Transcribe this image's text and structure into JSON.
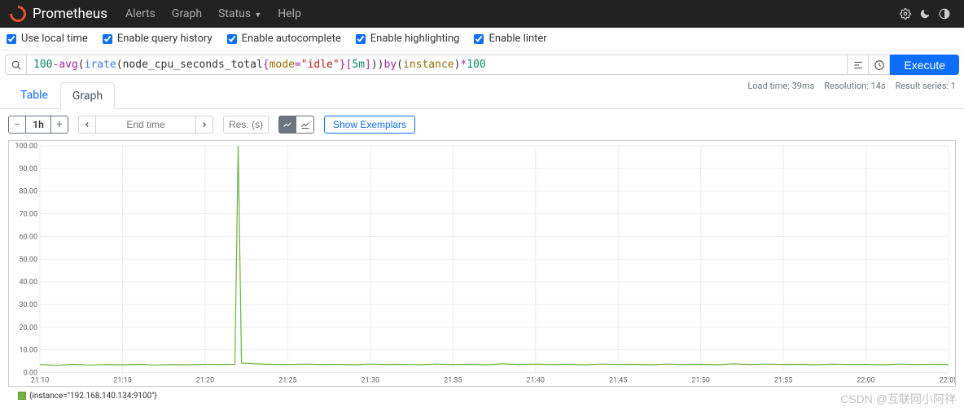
{
  "navbar": {
    "brand": "Prometheus",
    "links": {
      "alerts": "Alerts",
      "graph": "Graph",
      "status": "Status",
      "help": "Help"
    }
  },
  "options": {
    "local_time": "Use local time",
    "query_history": "Enable query history",
    "autocomplete": "Enable autocomplete",
    "highlighting": "Enable highlighting",
    "linter": "Enable linter"
  },
  "query": {
    "tokens": {
      "n1": "100",
      "op1": "-",
      "kw1": "avg",
      "p1": "(",
      "fn1": "irate",
      "p2": "(",
      "metric": "node_cpu_seconds_total",
      "lb": "{",
      "label": "mode",
      "eq": "=",
      "str": "\"idle\"",
      "rb": "}",
      "lbr": "[",
      "dur": "5m",
      "rbr": "]",
      "p3": "))",
      "sp": " ",
      "kw2": "by",
      "p4": "(",
      "label2": "instance",
      "p5": ")",
      "op2": "*",
      "n2": "100"
    },
    "execute_label": "Execute"
  },
  "meta": {
    "load_time": "Load time: 39ms",
    "resolution": "Resolution: 14s",
    "result_series": "Result series: 1"
  },
  "tabs": {
    "table": "Table",
    "graph": "Graph"
  },
  "controls": {
    "range": "1h",
    "end_time_placeholder": "End time",
    "res_placeholder": "Res. (s)",
    "exemplars": "Show Exemplars"
  },
  "chart": {
    "type": "line",
    "y_ticks": [
      "0.00",
      "10.00",
      "20.00",
      "30.00",
      "40.00",
      "50.00",
      "60.00",
      "70.00",
      "80.00",
      "90.00",
      "100.00"
    ],
    "ylim": [
      0,
      100
    ],
    "x_ticks": [
      "21:10",
      "21:15",
      "21:20",
      "21:25",
      "21:30",
      "21:35",
      "21:40",
      "21:45",
      "21:50",
      "21:55",
      "22:00",
      "22:05"
    ],
    "x_domain": [
      0,
      55
    ],
    "series_color": "#6db33f",
    "grid_color": "#eeeeee",
    "background_color": "#ffffff",
    "label_fontsize": 9,
    "points": [
      [
        0,
        3.5
      ],
      [
        1,
        3.2
      ],
      [
        2,
        3.6
      ],
      [
        3,
        3.3
      ],
      [
        4,
        3.5
      ],
      [
        5,
        3.4
      ],
      [
        6,
        3.6
      ],
      [
        7,
        3.3
      ],
      [
        8,
        3.5
      ],
      [
        9,
        3.4
      ],
      [
        10,
        3.6
      ],
      [
        11,
        3.5
      ],
      [
        11.8,
        3.6
      ],
      [
        12,
        100
      ],
      [
        12.2,
        4.2
      ],
      [
        13,
        3.8
      ],
      [
        14,
        3.6
      ],
      [
        15,
        3.5
      ],
      [
        16,
        3.7
      ],
      [
        17,
        3.5
      ],
      [
        18,
        3.6
      ],
      [
        19,
        3.4
      ],
      [
        20,
        3.7
      ],
      [
        21,
        3.5
      ],
      [
        22,
        3.6
      ],
      [
        23,
        3.4
      ],
      [
        24,
        3.7
      ],
      [
        25,
        3.5
      ],
      [
        26,
        3.6
      ],
      [
        27,
        3.4
      ],
      [
        28,
        3.8
      ],
      [
        29,
        3.5
      ],
      [
        30,
        3.7
      ],
      [
        31,
        3.5
      ],
      [
        32,
        3.6
      ],
      [
        33,
        3.4
      ],
      [
        34,
        3.7
      ],
      [
        35,
        3.5
      ],
      [
        36,
        3.6
      ],
      [
        37,
        3.4
      ],
      [
        38,
        3.7
      ],
      [
        39,
        3.5
      ],
      [
        40,
        3.6
      ],
      [
        41,
        3.4
      ],
      [
        42,
        3.8
      ],
      [
        43,
        3.5
      ],
      [
        44,
        3.7
      ],
      [
        45,
        3.5
      ],
      [
        46,
        3.6
      ],
      [
        47,
        3.4
      ],
      [
        48,
        3.7
      ],
      [
        49,
        3.5
      ],
      [
        50,
        3.6
      ],
      [
        51,
        3.4
      ],
      [
        52,
        3.7
      ],
      [
        53,
        3.5
      ],
      [
        54,
        3.6
      ],
      [
        55,
        3.5
      ]
    ]
  },
  "legend": {
    "label": "{instance=\"192.168.140.134:9100\"}"
  },
  "watermark": "CSDN @互联网小阿祥"
}
